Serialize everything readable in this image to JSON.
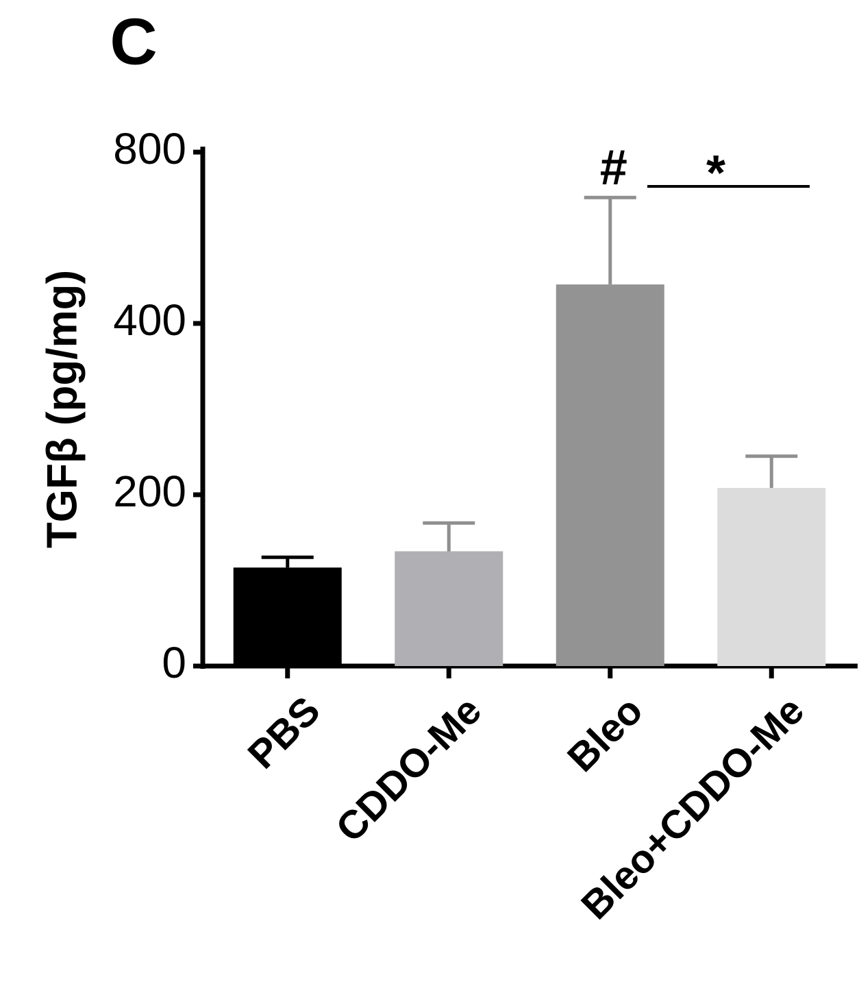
{
  "chart_data": {
    "type": "bar",
    "panel_label": "C",
    "ylabel": "TGFβ (pg/mg)",
    "categories": [
      "PBS",
      "CDDO-Me",
      "Bleo",
      "Bleo+CDDO-Me"
    ],
    "values": [
      115,
      134,
      491,
      208
    ],
    "errors": [
      12,
      33,
      203,
      37
    ],
    "colors": [
      "#000000",
      "#b0afb3",
      "#939393",
      "#dcdcdc"
    ],
    "error_colors": [
      "#000000",
      "#8f8f8f",
      "#8f8f8f",
      "#8f8f8f"
    ],
    "ylim": [
      0,
      800
    ],
    "yticks": [
      0,
      200,
      400,
      800
    ],
    "grid": false,
    "annotations": [
      {
        "text": "#"
      },
      {
        "text": "*"
      }
    ]
  }
}
